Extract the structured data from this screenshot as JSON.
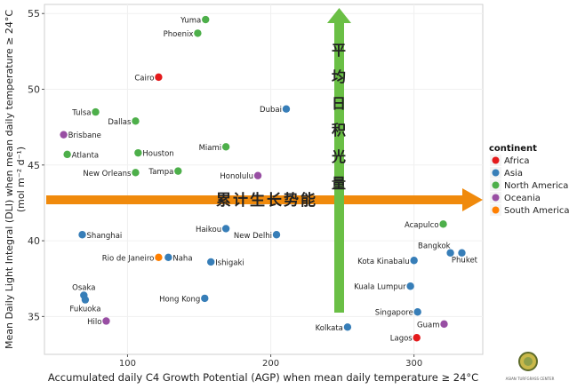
{
  "chart_data": {
    "type": "scatter",
    "xlabel": "Accumulated daily C4 Growth Potential (AGP) when mean daily temperature ≥ 24°C",
    "ylabel_line1": "Mean Daily Light Integral (DLI) when mean daily temperature ≥ 24°C",
    "ylabel_line2": "(mol m⁻² d⁻¹)",
    "xlim": [
      42,
      348
    ],
    "ylim": [
      32.5,
      55.6
    ],
    "x_ticks": [
      100,
      200,
      300
    ],
    "y_ticks": [
      35,
      40,
      45,
      50,
      55
    ],
    "grid": true,
    "legend": {
      "title": "continent",
      "placement": "right",
      "entries": [
        {
          "name": "Africa",
          "color": "#e41a1c"
        },
        {
          "name": "Asia",
          "color": "#377eb8"
        },
        {
          "name": "North America",
          "color": "#4daf4a"
        },
        {
          "name": "Oceania",
          "color": "#984ea3"
        },
        {
          "name": "South America",
          "color": "#ff7f00"
        }
      ]
    },
    "points": [
      {
        "label": "Yuma",
        "x": 154.5,
        "y": 54.6,
        "continent": "North America",
        "pos": "left"
      },
      {
        "label": "Phoenix",
        "x": 149,
        "y": 53.7,
        "continent": "North America",
        "pos": "left"
      },
      {
        "label": "Cairo",
        "x": 121.7,
        "y": 50.8,
        "continent": "Africa",
        "pos": "left"
      },
      {
        "label": "Dubai",
        "x": 210.8,
        "y": 48.7,
        "continent": "Asia",
        "pos": "left"
      },
      {
        "label": "Tulsa",
        "x": 77.7,
        "y": 48.5,
        "continent": "North America",
        "pos": "left"
      },
      {
        "label": "Dallas",
        "x": 105.6,
        "y": 47.9,
        "continent": "North America",
        "pos": "left"
      },
      {
        "label": "Brisbane",
        "x": 55.4,
        "y": 47.0,
        "continent": "Oceania",
        "pos": "right"
      },
      {
        "label": "Atlanta",
        "x": 57.9,
        "y": 45.7,
        "continent": "North America",
        "pos": "right"
      },
      {
        "label": "Houston",
        "x": 107.4,
        "y": 45.8,
        "continent": "North America",
        "pos": "right"
      },
      {
        "label": "Miami",
        "x": 168.7,
        "y": 46.2,
        "continent": "North America",
        "pos": "left"
      },
      {
        "label": "New Orleans",
        "x": 105.6,
        "y": 44.5,
        "continent": "North America",
        "pos": "left"
      },
      {
        "label": "Tampa",
        "x": 135.3,
        "y": 44.6,
        "continent": "North America",
        "pos": "left"
      },
      {
        "label": "Honolulu",
        "x": 191,
        "y": 44.3,
        "continent": "Oceania",
        "pos": "left"
      },
      {
        "label": "Shanghai",
        "x": 68.4,
        "y": 40.4,
        "continent": "Asia",
        "pos": "right"
      },
      {
        "label": "Haikou",
        "x": 168.7,
        "y": 40.8,
        "continent": "Asia",
        "pos": "left"
      },
      {
        "label": "New Delhi",
        "x": 204,
        "y": 40.4,
        "continent": "Asia",
        "pos": "left"
      },
      {
        "label": "Rio de Janeiro",
        "x": 121.7,
        "y": 38.9,
        "continent": "South America",
        "pos": "left"
      },
      {
        "label": "Naha",
        "x": 128.5,
        "y": 38.9,
        "continent": "Asia",
        "pos": "right"
      },
      {
        "label": "Ishigaki",
        "x": 158.2,
        "y": 38.6,
        "continent": "Asia",
        "pos": "right"
      },
      {
        "label": "Osaka",
        "x": 69.5,
        "y": 36.4,
        "continent": "Asia",
        "pos": "above"
      },
      {
        "label": "Fukuoka",
        "x": 70.5,
        "y": 36.1,
        "continent": "Asia",
        "pos": "below"
      },
      {
        "label": "Hong Kong",
        "x": 153.9,
        "y": 36.2,
        "continent": "Asia",
        "pos": "left"
      },
      {
        "label": "Hilo",
        "x": 85.1,
        "y": 34.7,
        "continent": "Oceania",
        "pos": "left"
      },
      {
        "label": "Acapulco",
        "x": 320.4,
        "y": 41.1,
        "continent": "North America",
        "pos": "left"
      },
      {
        "label": "Bangkok",
        "x": 325.4,
        "y": 39.2,
        "continent": "Asia",
        "pos": "aboveleft"
      },
      {
        "label": "Phuket",
        "x": 333.4,
        "y": 39.2,
        "continent": "Asia",
        "pos": "belowright"
      },
      {
        "label": "Kota Kinabalu",
        "x": 300,
        "y": 38.7,
        "continent": "Asia",
        "pos": "left"
      },
      {
        "label": "Kuala Lumpur",
        "x": 297.5,
        "y": 37.0,
        "continent": "Asia",
        "pos": "left"
      },
      {
        "label": "Singapore",
        "x": 302.5,
        "y": 35.3,
        "continent": "Asia",
        "pos": "left"
      },
      {
        "label": "Kolkata",
        "x": 253.6,
        "y": 34.3,
        "continent": "Asia",
        "pos": "left"
      },
      {
        "label": "Guam",
        "x": 321,
        "y": 34.5,
        "continent": "Oceania",
        "pos": "left"
      },
      {
        "label": "Lagos",
        "x": 301.9,
        "y": 33.6,
        "continent": "Africa",
        "pos": "left"
      }
    ],
    "annotations": {
      "vertical_arrow_text": "平均日积光量",
      "vertical_arrow_color": "#6abf45",
      "horizontal_arrow_text": "累计生长势能",
      "horizontal_arrow_color": "#f08a0c"
    }
  },
  "logo": {
    "text": "ASIAN TURFGRASS CENTER"
  }
}
